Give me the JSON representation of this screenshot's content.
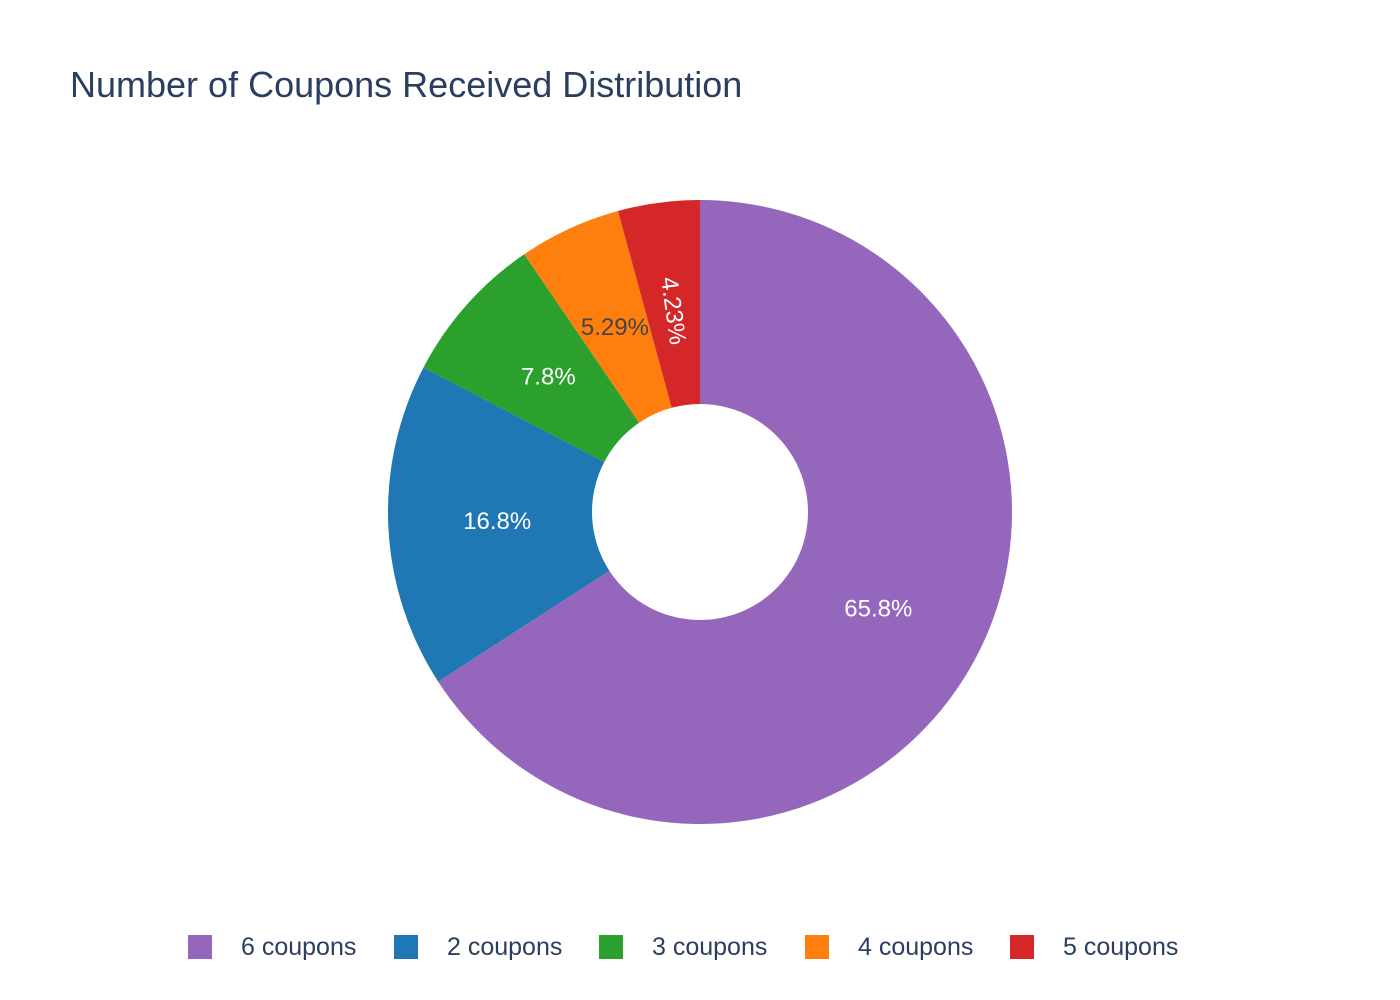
{
  "chart_data": {
    "type": "pie",
    "hole": true,
    "title": "Number of Coupons Received Distribution",
    "slices": [
      {
        "label": "6 coupons",
        "value": 65.8,
        "text": "65.8%",
        "color": "#9467bd",
        "text_color": "#ffffff"
      },
      {
        "label": "2 coupons",
        "value": 16.8,
        "text": "16.8%",
        "color": "#1f77b4",
        "text_color": "#ffffff"
      },
      {
        "label": "3 coupons",
        "value": 7.8,
        "text": "7.8%",
        "color": "#2ca02c",
        "text_color": "#ffffff"
      },
      {
        "label": "4 coupons",
        "value": 5.29,
        "text": "5.29%",
        "color": "#ff7f0e",
        "text_color": "#444444"
      },
      {
        "label": "5 coupons",
        "value": 4.23,
        "text": "4.23%",
        "color": "#d62728",
        "text_color": "#ffffff"
      }
    ],
    "legend_position": "bottom"
  }
}
